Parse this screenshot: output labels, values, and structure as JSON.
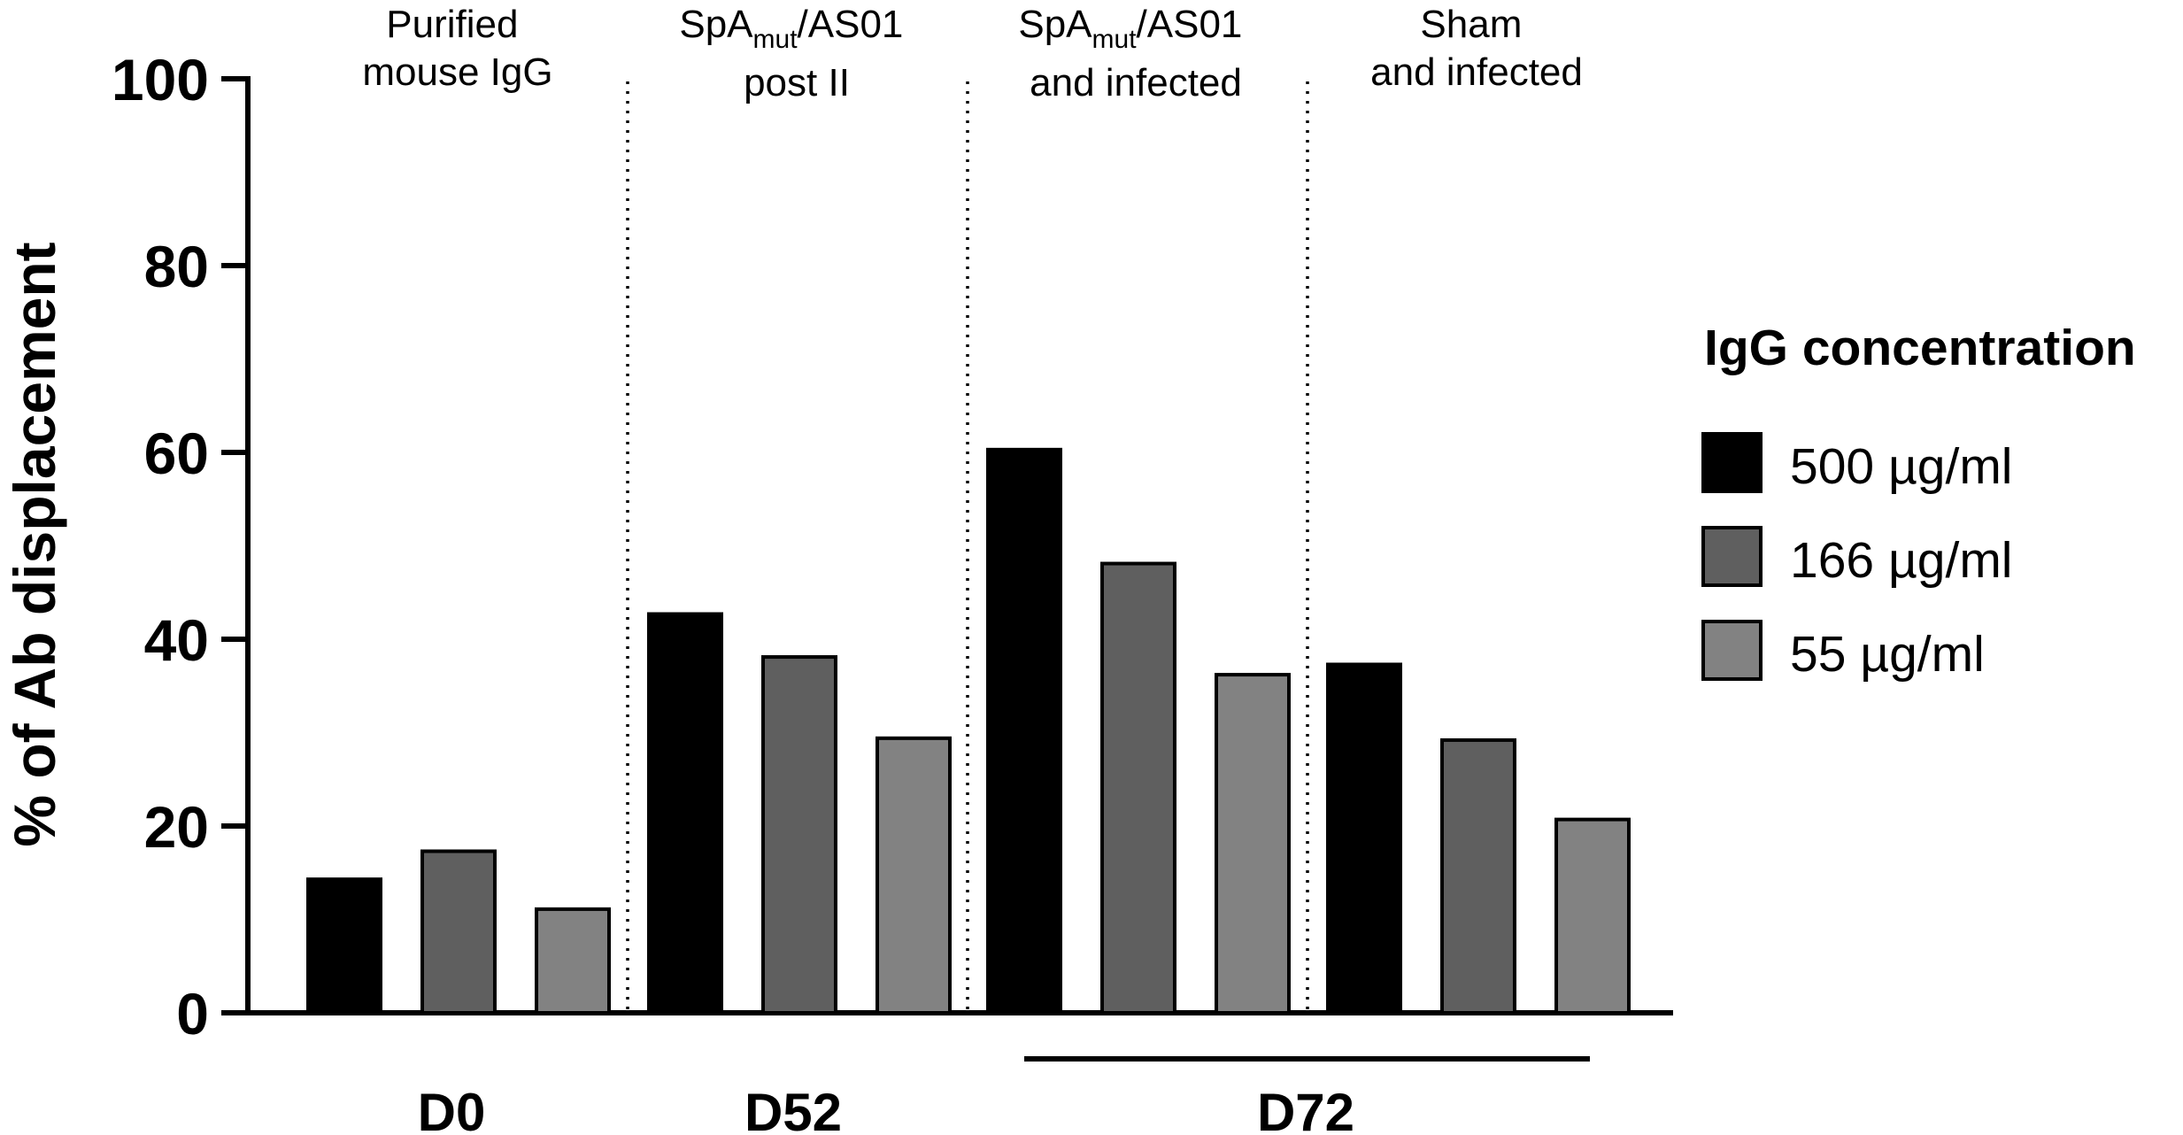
{
  "chart_data": {
    "type": "bar",
    "ylabel": "% of Ab displacement",
    "xlabel": "",
    "ylim": [
      0,
      100
    ],
    "yticks": [
      0,
      20,
      40,
      60,
      80,
      100
    ],
    "grid": false,
    "legend": {
      "title": "IgG concentration",
      "placement": "right"
    },
    "group_labels": [
      {
        "line1": "Purified",
        "line2": "mouse IgG"
      },
      {
        "line1_pre": "SpA",
        "line1_sub": "mut",
        "line1_post": "/AS01",
        "line2": "post II"
      },
      {
        "line1_pre": "SpA",
        "line1_sub": "mut",
        "line1_post": "/AS01",
        "line2": "and infected"
      },
      {
        "line1": "Sham",
        "line2": "and infected"
      }
    ],
    "day_labels": [
      "D0",
      "D52",
      "D72"
    ],
    "series": [
      {
        "name": "500 µg/ml",
        "color": "#000000",
        "values": [
          14.3,
          42.7,
          60.3,
          37.3
        ]
      },
      {
        "name": "166 µg/ml",
        "color": "#5f5f5f",
        "values": [
          17.3,
          38.1,
          48.1,
          29.2
        ]
      },
      {
        "name": "55 µg/ml",
        "color": "#828282",
        "values": [
          11.1,
          29.4,
          36.2,
          20.7
        ]
      }
    ]
  }
}
